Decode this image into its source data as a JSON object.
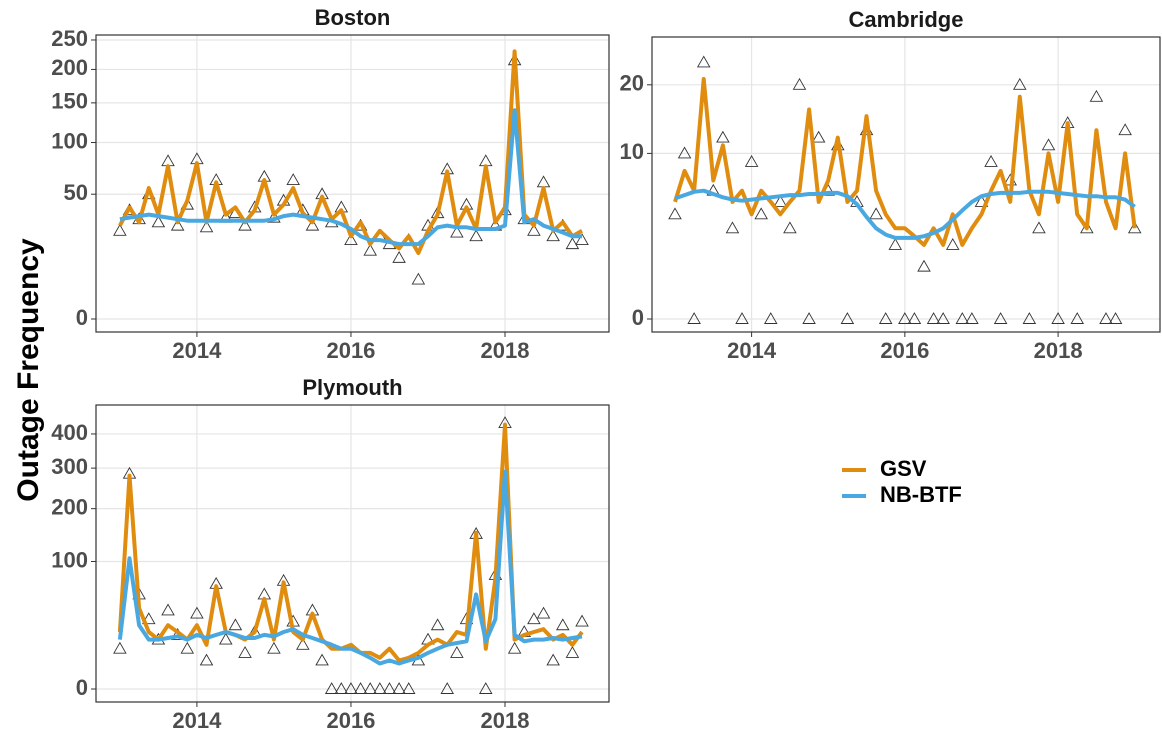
{
  "y_label": "Outage Frequency",
  "chart_data": [
    {
      "type": "line",
      "title": "Boston",
      "yscale": "sqrt",
      "grid": true,
      "xlim": [
        2012.69,
        2019.35
      ],
      "xticks": [
        2014,
        2016,
        2018
      ],
      "ylim": [
        0,
        259
      ],
      "yticks": [
        0,
        50,
        100,
        150,
        200,
        250
      ],
      "x": [
        2013,
        2013.125,
        2013.25,
        2013.375,
        2013.5,
        2013.625,
        2013.75,
        2013.875,
        2014,
        2014.125,
        2014.25,
        2014.375,
        2014.5,
        2014.625,
        2014.75,
        2014.875,
        2015,
        2015.125,
        2015.25,
        2015.375,
        2015.5,
        2015.625,
        2015.75,
        2015.875,
        2016,
        2016.125,
        2016.25,
        2016.375,
        2016.5,
        2016.625,
        2016.75,
        2016.875,
        2017,
        2017.125,
        2017.25,
        2017.375,
        2017.5,
        2017.625,
        2017.75,
        2017.875,
        2018,
        2018.125,
        2018.25,
        2018.375,
        2018.5,
        2018.625,
        2018.75,
        2018.875,
        2019
      ],
      "series": [
        {
          "marker": "triangle",
          "color": "#333333",
          "values": [
            25,
            38,
            32,
            50,
            30,
            80,
            28,
            42,
            82,
            27,
            62,
            33,
            36,
            28,
            40,
            65,
            33,
            45,
            62,
            38,
            28,
            50,
            30,
            40,
            20,
            28,
            15,
            22,
            18,
            12,
            20,
            5,
            28,
            36,
            72,
            24,
            42,
            22,
            80,
            28,
            38,
            215,
            32,
            25,
            60,
            22,
            28,
            18,
            20
          ]
        },
        {
          "name": "GSV",
          "color": "#e08c0f",
          "values": [
            28,
            40,
            30,
            55,
            35,
            75,
            30,
            45,
            78,
            30,
            60,
            35,
            40,
            30,
            38,
            62,
            35,
            42,
            55,
            36,
            30,
            48,
            32,
            38,
            22,
            30,
            18,
            25,
            20,
            16,
            22,
            14,
            25,
            35,
            70,
            28,
            40,
            26,
            75,
            30,
            40,
            230,
            35,
            28,
            55,
            25,
            30,
            22,
            25
          ]
        },
        {
          "name": "NB-BTF",
          "color": "#4aa8e0",
          "values": [
            32,
            33,
            34,
            35,
            34,
            33,
            32,
            31,
            31,
            31,
            31,
            31,
            31,
            31,
            31,
            31,
            32,
            34,
            35,
            34,
            33,
            32,
            31,
            29,
            26,
            22,
            20,
            20,
            19,
            18,
            18,
            18,
            22,
            27,
            28,
            27,
            27,
            26,
            26,
            26,
            28,
            140,
            30,
            32,
            28,
            26,
            24,
            22,
            22
          ]
        }
      ]
    },
    {
      "type": "line",
      "title": "Cambridge",
      "yscale": "sqrt",
      "grid": true,
      "xlim": [
        2012.7,
        2019.33
      ],
      "xticks": [
        2014,
        2016,
        2018
      ],
      "ylim": [
        0,
        29
      ],
      "yticks": [
        0,
        10,
        20
      ],
      "x": [
        2013,
        2013.125,
        2013.25,
        2013.375,
        2013.5,
        2013.625,
        2013.75,
        2013.875,
        2014,
        2014.125,
        2014.25,
        2014.375,
        2014.5,
        2014.625,
        2014.75,
        2014.875,
        2015,
        2015.125,
        2015.25,
        2015.375,
        2015.5,
        2015.625,
        2015.75,
        2015.875,
        2016,
        2016.125,
        2016.25,
        2016.375,
        2016.5,
        2016.625,
        2016.75,
        2016.875,
        2017,
        2017.125,
        2017.25,
        2017.375,
        2017.5,
        2017.625,
        2017.75,
        2017.875,
        2018,
        2018.125,
        2018.25,
        2018.375,
        2018.5,
        2018.625,
        2018.75,
        2018.875,
        2019
      ],
      "series": [
        {
          "marker": "triangle",
          "color": "#333333",
          "values": [
            4,
            10,
            0,
            24,
            6,
            12,
            3,
            0,
            9,
            4,
            0,
            5,
            3,
            20,
            0,
            12,
            6,
            11,
            0,
            5,
            13,
            4,
            0,
            2,
            0,
            0,
            1,
            0,
            0,
            2,
            0,
            0,
            5,
            9,
            0,
            7,
            20,
            0,
            3,
            11,
            0,
            14,
            0,
            3,
            18,
            0,
            0,
            13,
            3
          ]
        },
        {
          "name": "GSV",
          "color": "#e08c0f",
          "values": [
            5,
            8,
            6,
            21,
            7,
            11,
            5,
            6,
            4,
            6,
            5,
            4,
            5,
            6,
            16,
            5,
            7,
            12,
            5,
            6,
            15,
            6,
            4,
            3,
            3,
            2.5,
            2,
            3,
            2,
            4,
            2,
            3,
            4,
            6,
            8,
            5,
            18,
            6,
            4,
            10,
            5,
            14,
            4,
            3,
            13,
            5,
            3,
            10,
            3
          ]
        },
        {
          "name": "NB-BTF",
          "color": "#4aa8e0",
          "values": [
            5.3,
            5.6,
            5.9,
            6,
            5.7,
            5.4,
            5.2,
            5.1,
            5.2,
            5.3,
            5.4,
            5.5,
            5.6,
            5.6,
            5.7,
            5.7,
            5.8,
            5.8,
            5.5,
            4.8,
            3.8,
            3,
            2.6,
            2.4,
            2.4,
            2.4,
            2.5,
            2.7,
            3,
            3.6,
            4.3,
            5,
            5.5,
            5.7,
            5.8,
            5.8,
            5.8,
            5.9,
            5.9,
            5.9,
            5.8,
            5.7,
            5.6,
            5.5,
            5.5,
            5.4,
            5.4,
            5.2,
            4.6
          ]
        }
      ]
    },
    {
      "type": "line",
      "title": "Plymouth",
      "yscale": "sqrt",
      "grid": true,
      "xlim": [
        2012.69,
        2019.35
      ],
      "xticks": [
        2014,
        2016,
        2018
      ],
      "ylim": [
        0,
        496
      ],
      "yticks": [
        0,
        100,
        200,
        300,
        400
      ],
      "x": [
        2013,
        2013.125,
        2013.25,
        2013.375,
        2013.5,
        2013.625,
        2013.75,
        2013.875,
        2014,
        2014.125,
        2014.25,
        2014.375,
        2014.5,
        2014.625,
        2014.75,
        2014.875,
        2015,
        2015.125,
        2015.25,
        2015.375,
        2015.5,
        2015.625,
        2015.75,
        2015.875,
        2016,
        2016.125,
        2016.25,
        2016.375,
        2016.5,
        2016.625,
        2016.75,
        2016.875,
        2017,
        2017.125,
        2017.25,
        2017.375,
        2017.5,
        2017.625,
        2017.75,
        2017.875,
        2018,
        2018.125,
        2018.25,
        2018.375,
        2018.5,
        2018.625,
        2018.75,
        2018.875,
        2019
      ],
      "series": [
        {
          "marker": "triangle",
          "color": "#333333",
          "values": [
            10,
            285,
            55,
            30,
            15,
            38,
            18,
            10,
            35,
            5,
            68,
            15,
            25,
            8,
            20,
            55,
            10,
            72,
            28,
            12,
            38,
            5,
            0,
            0,
            0,
            0,
            0,
            0,
            0,
            0,
            0,
            5,
            15,
            25,
            0,
            8,
            30,
            148,
            0,
            80,
            435,
            10,
            20,
            30,
            35,
            5,
            25,
            8,
            28
          ]
        },
        {
          "name": "GSV",
          "color": "#e08c0f",
          "values": [
            20,
            280,
            40,
            20,
            15,
            25,
            20,
            15,
            25,
            12,
            65,
            20,
            18,
            15,
            20,
            50,
            15,
            70,
            20,
            15,
            35,
            15,
            10,
            10,
            12,
            8,
            8,
            6,
            10,
            5,
            6,
            8,
            12,
            15,
            12,
            20,
            18,
            150,
            10,
            75,
            430,
            15,
            18,
            20,
            22,
            15,
            18,
            12,
            20
          ]
        },
        {
          "name": "NB-BTF",
          "color": "#4aa8e0",
          "values": [
            15,
            105,
            25,
            15,
            15,
            16,
            17,
            15,
            18,
            16,
            18,
            20,
            18,
            16,
            16,
            18,
            17,
            20,
            22,
            18,
            16,
            14,
            12,
            10,
            10,
            8,
            6,
            4,
            5,
            4,
            5,
            6,
            8,
            10,
            12,
            13,
            14,
            55,
            14,
            30,
            290,
            18,
            14,
            15,
            15,
            16,
            15,
            16,
            17
          ]
        }
      ]
    }
  ]
}
